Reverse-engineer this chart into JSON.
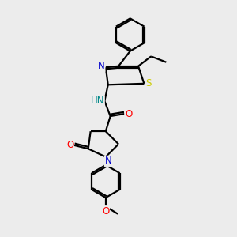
{
  "bg_color": "#ececec",
  "bond_color": "#000000",
  "bond_width": 1.6,
  "atom_colors": {
    "N": "#0000cc",
    "O": "#ff0000",
    "S": "#cccc00",
    "C": "#000000",
    "H": "#008888"
  },
  "font_size": 8.5
}
